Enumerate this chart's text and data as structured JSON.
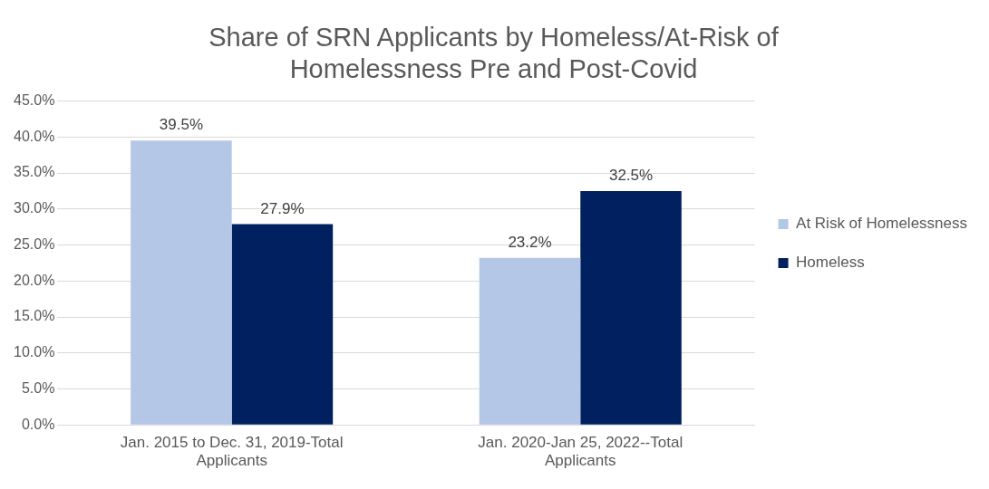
{
  "chart_data": {
    "type": "bar",
    "title": "Share of SRN Applicants by Homeless/At-Risk of Homelessness Pre and Post-Covid",
    "categories": [
      "Jan. 2015 to Dec. 31, 2019-Total Applicants",
      "Jan. 2020-Jan 25, 2022--Total Applicants"
    ],
    "series": [
      {
        "name": "At Risk of Homelessness",
        "color": "#b4c7e7",
        "values": [
          39.5,
          23.2
        ],
        "value_labels": [
          "39.5%",
          "23.2%"
        ]
      },
      {
        "name": "Homeless",
        "color": "#002060",
        "values": [
          27.9,
          32.5
        ],
        "value_labels": [
          "27.9%",
          "32.5%"
        ]
      }
    ],
    "ylim": [
      0,
      45
    ],
    "yticks": [
      {
        "value": 0,
        "label": "0.0%"
      },
      {
        "value": 5,
        "label": "5.0%"
      },
      {
        "value": 10,
        "label": "10.0%"
      },
      {
        "value": 15,
        "label": "15.0%"
      },
      {
        "value": 20,
        "label": "20.0%"
      },
      {
        "value": 25,
        "label": "25.0%"
      },
      {
        "value": 30,
        "label": "30.0%"
      },
      {
        "value": 35,
        "label": "35.0%"
      },
      {
        "value": 40,
        "label": "40.0%"
      },
      {
        "value": 45,
        "label": "45.0%"
      }
    ],
    "grid": "y",
    "legend": "right"
  }
}
